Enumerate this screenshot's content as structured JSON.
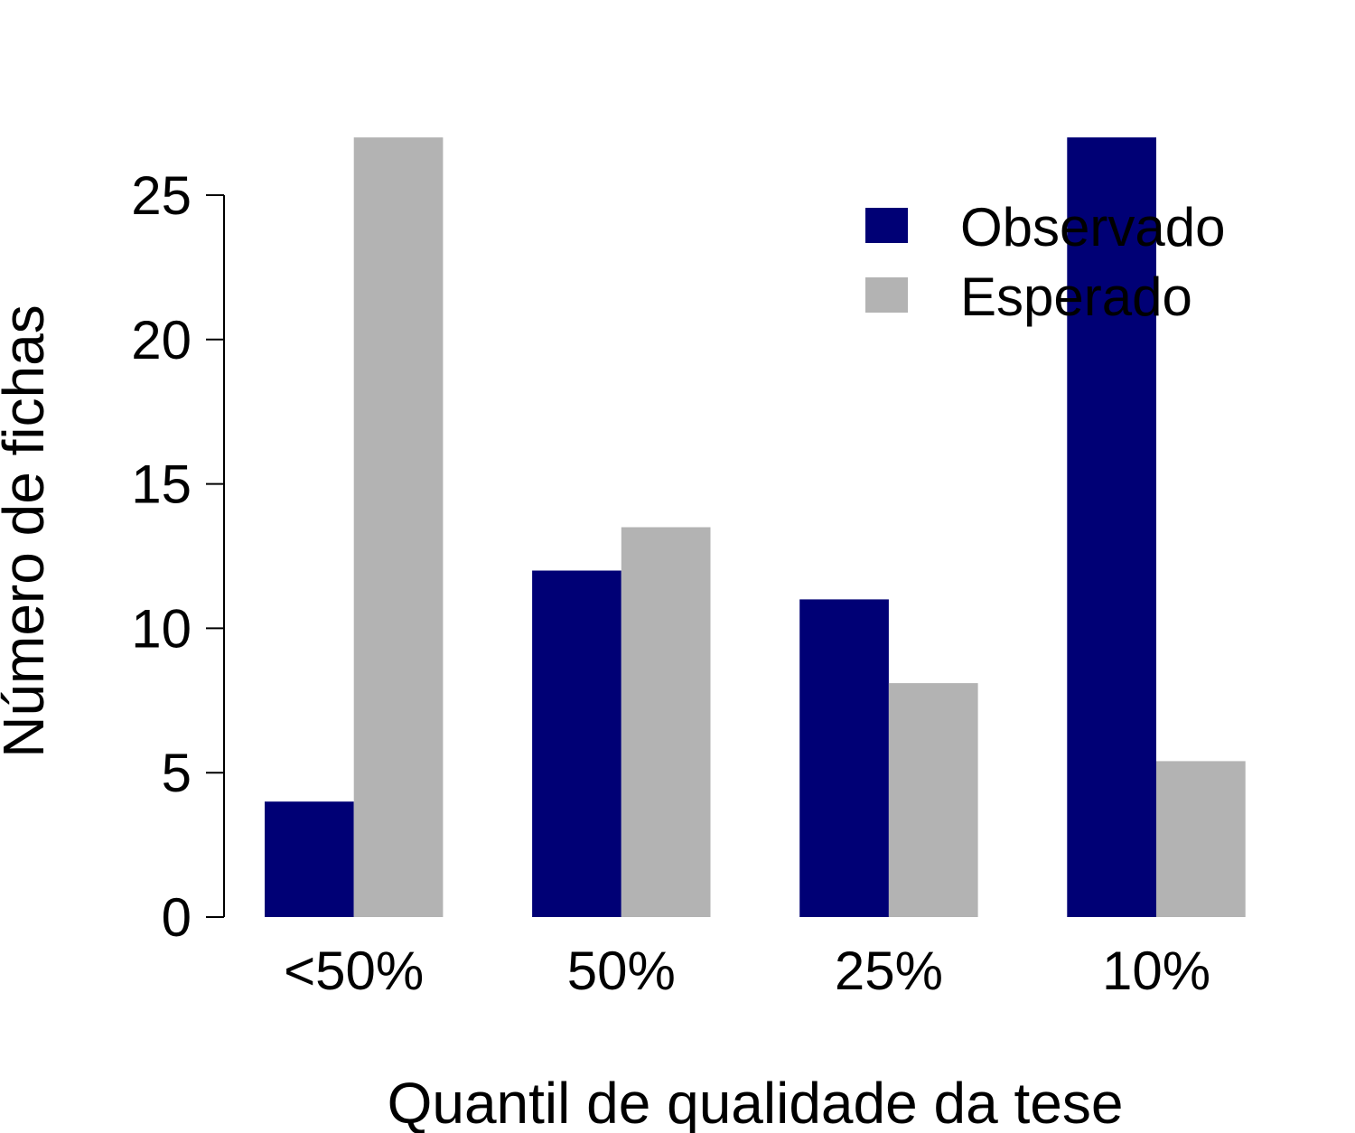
{
  "chart_data": {
    "type": "bar",
    "title": "",
    "xlabel": "Quantil de qualidade da tese",
    "ylabel": "Número de fichas",
    "categories": [
      "<50%",
      "50%",
      "25%",
      "10%"
    ],
    "series": [
      {
        "name": "Observado",
        "color": "#000075",
        "values": [
          4,
          12,
          11,
          27
        ]
      },
      {
        "name": "Esperado",
        "color": "#b3b3b3",
        "values": [
          27,
          13.5,
          8.1,
          5.4
        ]
      }
    ],
    "ylim": [
      0,
      27
    ],
    "yticks": [
      "0",
      "5",
      "10",
      "15",
      "20",
      "25"
    ],
    "grid": false,
    "legend": "top-right"
  }
}
